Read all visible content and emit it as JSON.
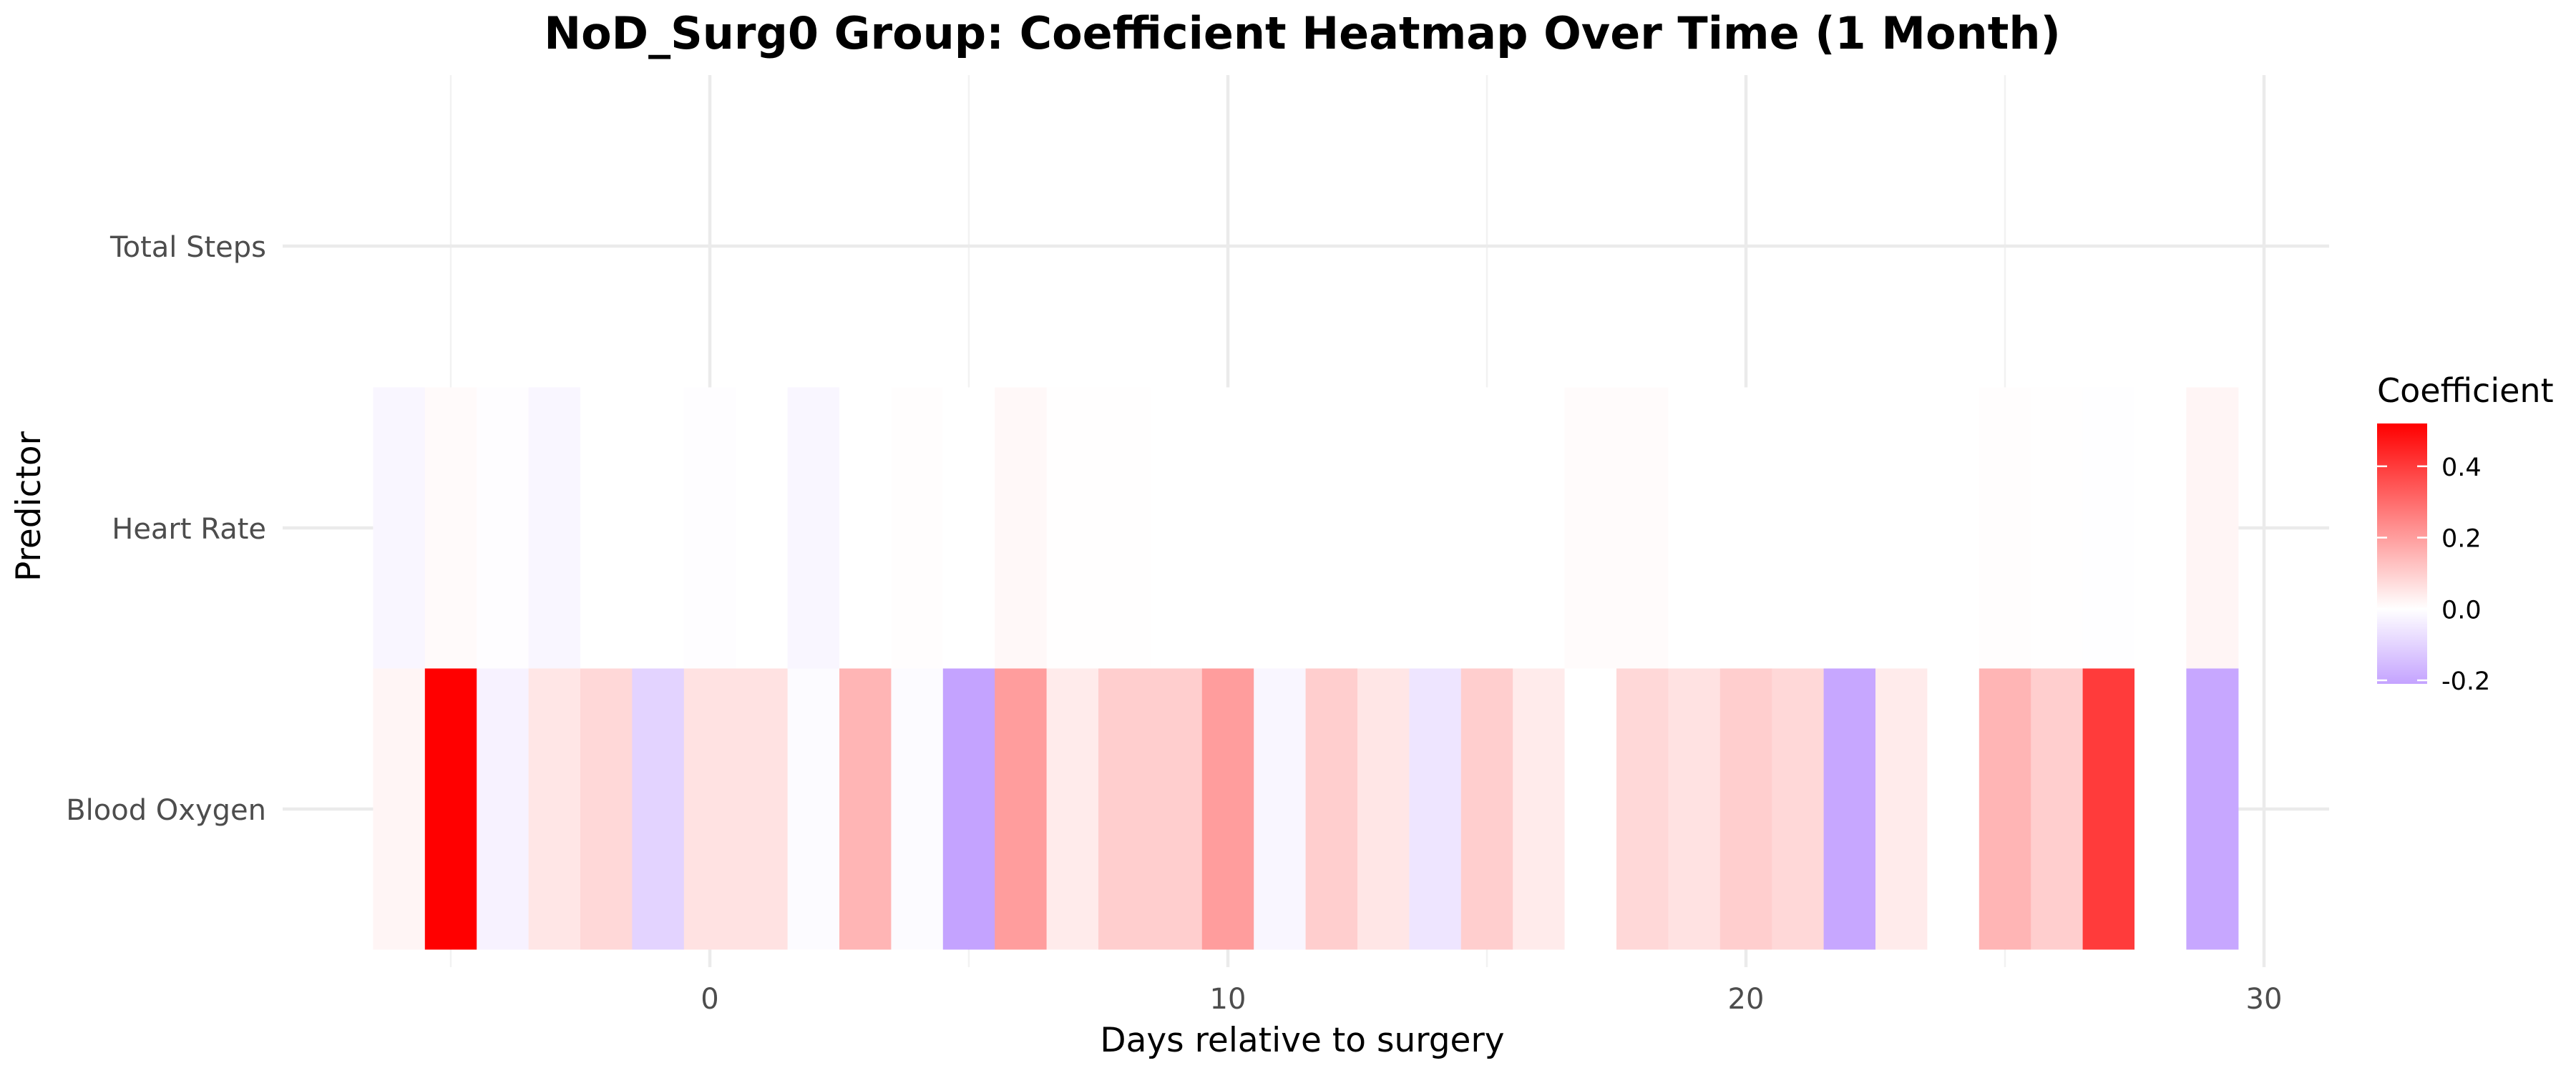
{
  "chart_data": {
    "type": "heatmap",
    "title": "NoD_Surg0 Group: Coefficient Heatmap Over Time (1 Month)",
    "xlabel": "Days relative to surgery",
    "ylabel": "Predictor",
    "xlim": [
      -5,
      31
    ],
    "x_ticks": [
      0,
      10,
      20,
      30
    ],
    "x_tick_labels": [
      "0",
      "10",
      "20",
      "30"
    ],
    "x_start": -6,
    "x_end": 29,
    "predictors": [
      "Total Steps",
      "Heart Rate",
      "Blood Oxygen"
    ],
    "rows": [
      {
        "name": "Heart Rate",
        "values": [
          -0.02,
          0.01,
          -0.005,
          -0.02,
          0.0,
          0.0,
          -0.005,
          0.0,
          -0.02,
          0.0,
          0.005,
          0.0,
          0.015,
          0.003,
          0.003,
          0.0,
          0.0,
          0.0,
          0.0,
          0.0,
          0.0,
          0.0,
          0.0,
          0.008,
          0.008,
          0.0,
          0.0,
          0.0,
          0.0,
          0.0,
          0.0,
          0.005,
          0.002,
          -0.003,
          0.0,
          0.02
        ]
      },
      {
        "name": "Blood Oxygen",
        "values": [
          0.02,
          0.52,
          -0.03,
          0.05,
          0.08,
          -0.1,
          0.06,
          0.06,
          -0.01,
          0.15,
          -0.01,
          -0.21,
          0.2,
          0.04,
          0.1,
          0.1,
          0.2,
          -0.02,
          0.1,
          0.05,
          -0.06,
          0.1,
          0.04,
          0.0,
          0.08,
          0.06,
          0.1,
          0.08,
          -0.2,
          0.04,
          0.0,
          0.15,
          0.1,
          0.4,
          0.0,
          -0.2
        ]
      }
    ],
    "legend": {
      "title": "Coefficient",
      "position": "right",
      "breaks": [
        0.4,
        0.2,
        0.0,
        -0.2
      ],
      "break_labels": [
        "0.4",
        "0.2",
        "0.0",
        "-0.2"
      ],
      "range": [
        -0.21,
        0.52
      ],
      "low_color": "#C4A3FF",
      "mid_color": "#FFFFFF",
      "high_color": "#FF0000"
    },
    "grid": true
  }
}
